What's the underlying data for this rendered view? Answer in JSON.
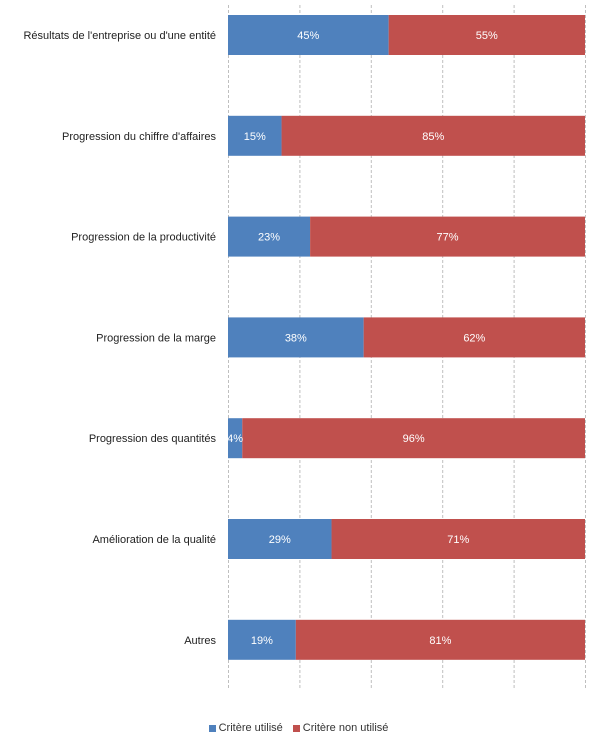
{
  "chart_data": {
    "type": "bar",
    "orientation": "horizontal",
    "stacked": true,
    "percent_stacked": true,
    "categories": [
      "Résultats de l'entreprise ou d'une entité",
      "Progression du chiffre d'affaires",
      "Progression de la productivité",
      "Progression de la marge",
      "Progression des quantités",
      "Amélioration de la qualité",
      "Autres"
    ],
    "series": [
      {
        "name": "Critère utilisé",
        "color": "#4f81bd",
        "values": [
          45,
          15,
          23,
          38,
          4,
          29,
          19
        ],
        "labels": [
          "45%",
          "15%",
          "23%",
          "38%",
          "4%",
          "29%",
          "19%"
        ]
      },
      {
        "name": "Critère non utilisé",
        "color": "#c0504d",
        "values": [
          55,
          85,
          77,
          62,
          96,
          71,
          81
        ],
        "labels": [
          "55%",
          "85%",
          "77%",
          "62%",
          "96%",
          "71%",
          "81%"
        ]
      }
    ],
    "xlim": [
      0,
      100
    ],
    "grid": true,
    "grid_style": "dashed vertical",
    "legend_position": "bottom",
    "title": "",
    "xlabel": "",
    "ylabel": ""
  }
}
